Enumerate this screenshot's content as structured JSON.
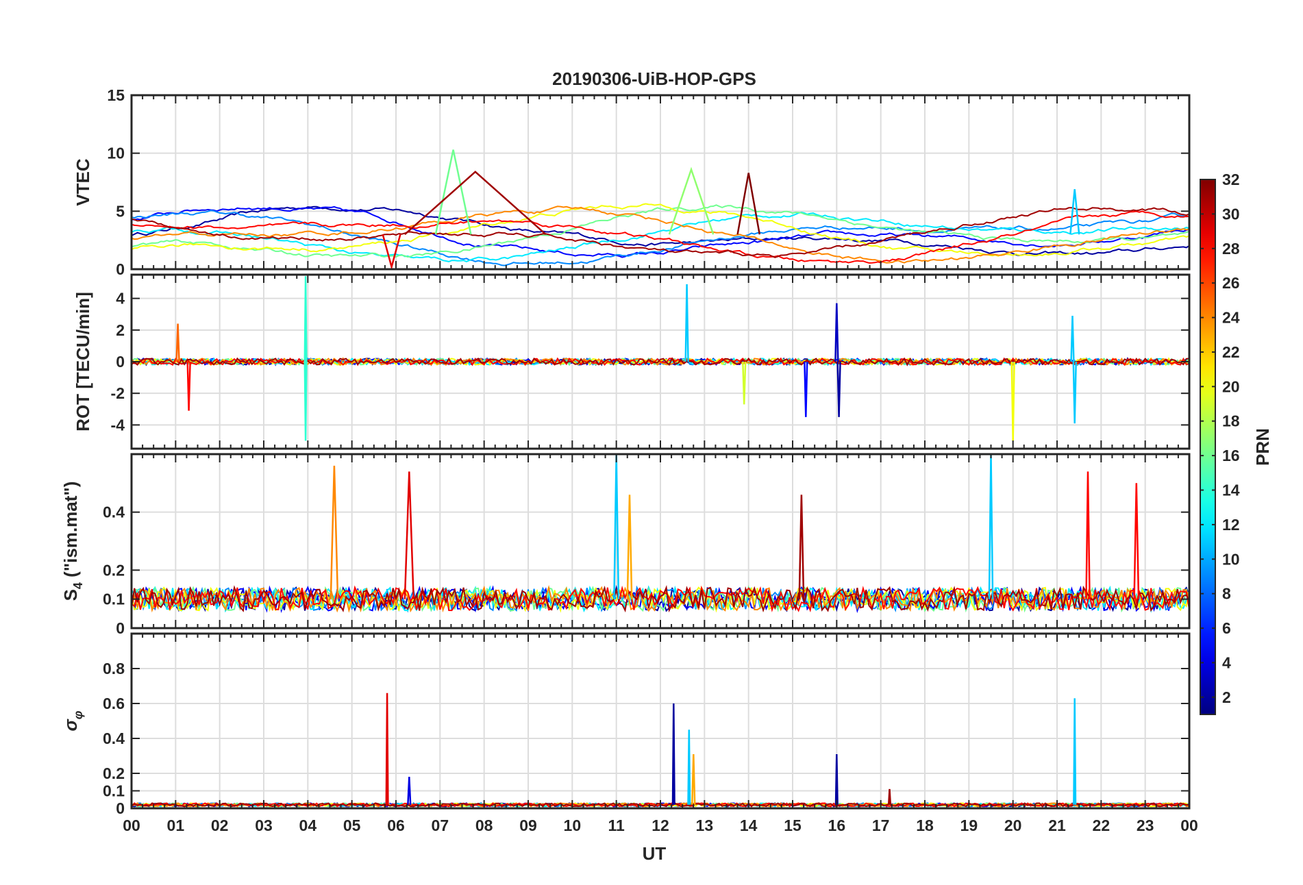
{
  "chart_data": {
    "type": "line",
    "title": "20190306-UiB-HOP-GPS",
    "xlabel": "UT",
    "x_ticks": [
      "00",
      "01",
      "02",
      "03",
      "04",
      "05",
      "06",
      "07",
      "08",
      "09",
      "10",
      "11",
      "12",
      "13",
      "14",
      "15",
      "16",
      "17",
      "18",
      "19",
      "20",
      "21",
      "22",
      "23",
      "00"
    ],
    "x_range_hours": [
      0,
      24
    ],
    "colorbar": {
      "label": "PRN",
      "range": [
        1,
        32
      ],
      "ticks": [
        "2",
        "4",
        "6",
        "8",
        "10",
        "12",
        "14",
        "16",
        "18",
        "20",
        "22",
        "24",
        "26",
        "28",
        "30",
        "32"
      ],
      "colormap": "jet"
    },
    "panels": [
      {
        "id": "vtec",
        "ylabel": "VTEC",
        "ylim": [
          0,
          15
        ],
        "y_ticks": [
          0,
          5,
          10,
          15
        ],
        "y_tick_labels": [
          "0",
          "5",
          "10",
          "15"
        ],
        "background_level": 3,
        "noise": 0.6,
        "features": [
          {
            "t": 7.3,
            "amp": 10.3,
            "width": 0.4,
            "prn": 16
          },
          {
            "t": 7.8,
            "amp": 8.4,
            "width": 1.6,
            "prn": 31
          },
          {
            "t": 12.7,
            "amp": 8.6,
            "width": 0.5,
            "prn": 17
          },
          {
            "t": 14.0,
            "amp": 8.3,
            "width": 0.25,
            "prn": 32
          },
          {
            "t": 21.4,
            "amp": 6.9,
            "width": 0.1,
            "prn": 11
          },
          {
            "t": 5.9,
            "amp": 0.2,
            "width": 0.2,
            "prn": 29
          }
        ]
      },
      {
        "id": "rot",
        "ylabel": "ROT [TECU/min]",
        "ylim": [
          -5.5,
          5.5
        ],
        "y_ticks": [
          -4,
          -2,
          0,
          2,
          4
        ],
        "y_tick_labels": [
          "-4",
          "-2",
          "0",
          "2",
          "4"
        ],
        "background_level": 0,
        "noise": 0.2,
        "features": [
          {
            "t": 3.95,
            "amp": 5.4,
            "width": 0.02,
            "prn": 14
          },
          {
            "t": 3.95,
            "amp": -5.0,
            "width": 0.02,
            "prn": 14
          },
          {
            "t": 1.3,
            "amp": -3.1,
            "width": 0.03,
            "prn": 28
          },
          {
            "t": 1.05,
            "amp": 2.4,
            "width": 0.03,
            "prn": 25
          },
          {
            "t": 12.6,
            "amp": 4.9,
            "width": 0.03,
            "prn": 11
          },
          {
            "t": 13.9,
            "amp": -2.7,
            "width": 0.03,
            "prn": 19
          },
          {
            "t": 15.3,
            "amp": -3.5,
            "width": 0.03,
            "prn": 5
          },
          {
            "t": 16.0,
            "amp": 3.7,
            "width": 0.03,
            "prn": 3
          },
          {
            "t": 16.05,
            "amp": -3.5,
            "width": 0.03,
            "prn": 2
          },
          {
            "t": 20.0,
            "amp": -5.0,
            "width": 0.03,
            "prn": 20
          },
          {
            "t": 21.4,
            "amp": -3.9,
            "width": 0.03,
            "prn": 11
          },
          {
            "t": 21.35,
            "amp": 2.9,
            "width": 0.03,
            "prn": 11
          }
        ]
      },
      {
        "id": "s4",
        "ylabel_main": "S",
        "ylabel_sub": "4",
        "ylabel_rest": " (\"ism.mat\")",
        "ylim": [
          0,
          0.6
        ],
        "y_ticks": [
          0,
          0.1,
          0.2,
          0.4
        ],
        "y_tick_labels": [
          "0",
          "0.1",
          "0.2",
          "0.4"
        ],
        "background_level": 0.1,
        "noise": 0.05,
        "features": [
          {
            "t": 4.6,
            "amp": 0.56,
            "width": 0.08,
            "prn": 24
          },
          {
            "t": 6.3,
            "amp": 0.54,
            "width": 0.1,
            "prn": 29
          },
          {
            "t": 11.0,
            "amp": 0.6,
            "width": 0.05,
            "prn": 11
          },
          {
            "t": 11.3,
            "amp": 0.46,
            "width": 0.05,
            "prn": 23
          },
          {
            "t": 15.2,
            "amp": 0.46,
            "width": 0.05,
            "prn": 31
          },
          {
            "t": 19.5,
            "amp": 0.6,
            "width": 0.04,
            "prn": 11
          },
          {
            "t": 21.7,
            "amp": 0.54,
            "width": 0.04,
            "prn": 28
          },
          {
            "t": 22.8,
            "amp": 0.5,
            "width": 0.05,
            "prn": 28
          }
        ]
      },
      {
        "id": "sigma",
        "ylabel_main": "σ",
        "ylabel_sub": "φ",
        "ylim": [
          0,
          1
        ],
        "y_ticks": [
          0,
          0.1,
          0.2,
          0.4,
          0.6,
          0.8
        ],
        "y_tick_labels": [
          "0",
          "0.1",
          "0.2",
          "0.4",
          "0.6",
          "0.8"
        ],
        "background_level": 0.02,
        "noise": 0.012,
        "features": [
          {
            "t": 5.8,
            "amp": 0.66,
            "width": 0.02,
            "prn": 29
          },
          {
            "t": 12.3,
            "amp": 0.6,
            "width": 0.02,
            "prn": 2
          },
          {
            "t": 12.65,
            "amp": 0.45,
            "width": 0.02,
            "prn": 11
          },
          {
            "t": 12.75,
            "amp": 0.31,
            "width": 0.03,
            "prn": 23
          },
          {
            "t": 16.0,
            "amp": 0.31,
            "width": 0.02,
            "prn": 2
          },
          {
            "t": 21.4,
            "amp": 0.63,
            "width": 0.02,
            "prn": 11
          },
          {
            "t": 6.3,
            "amp": 0.18,
            "width": 0.03,
            "prn": 4
          },
          {
            "t": 17.2,
            "amp": 0.11,
            "width": 0.02,
            "prn": 31
          }
        ]
      }
    ]
  }
}
